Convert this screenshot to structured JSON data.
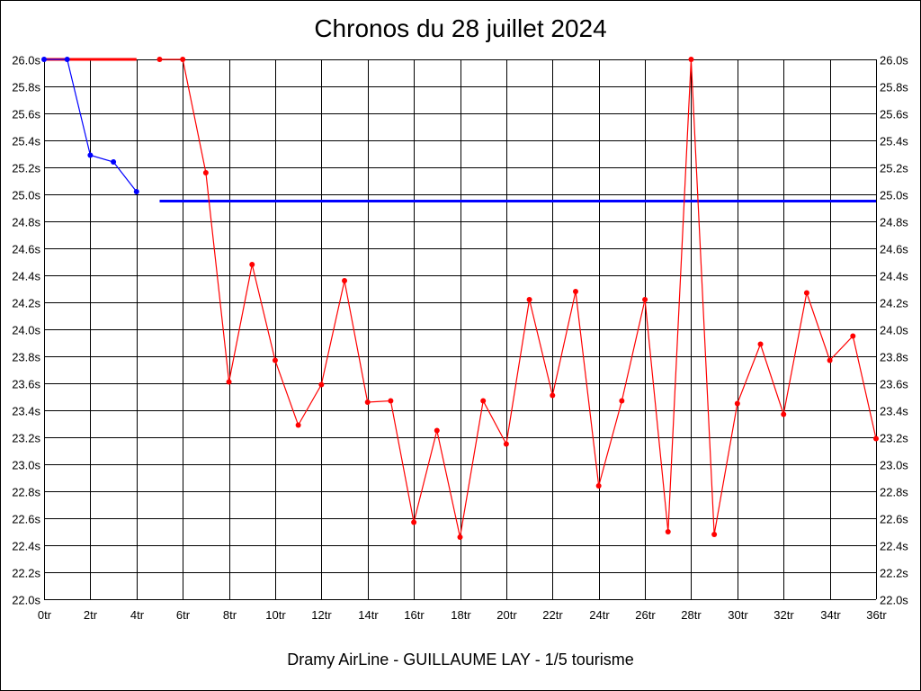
{
  "chart_data": {
    "type": "line",
    "title": "Chronos du 28 juillet 2024",
    "footer": "Dramy AirLine - GUILLAUME LAY - 1/5 tourisme",
    "xlim": [
      0,
      36
    ],
    "ylim": [
      22.0,
      26.0
    ],
    "x_ticks": [
      "0tr",
      "2tr",
      "4tr",
      "6tr",
      "8tr",
      "10tr",
      "12tr",
      "14tr",
      "16tr",
      "18tr",
      "20tr",
      "22tr",
      "24tr",
      "26tr",
      "28tr",
      "30tr",
      "32tr",
      "34tr",
      "36tr"
    ],
    "y_ticks": [
      "22.0s",
      "22.2s",
      "22.4s",
      "22.6s",
      "22.8s",
      "23.0s",
      "23.2s",
      "23.4s",
      "23.6s",
      "23.8s",
      "24.0s",
      "24.2s",
      "24.4s",
      "24.6s",
      "24.8s",
      "25.0s",
      "25.2s",
      "25.4s",
      "25.6s",
      "25.8s",
      "26.0s"
    ],
    "grid": true,
    "series": [
      {
        "color": "#0000ff",
        "points": [
          [
            0,
            26.0
          ],
          [
            1,
            26.0
          ],
          [
            2,
            25.29
          ],
          [
            3,
            25.24
          ],
          [
            4,
            25.02
          ]
        ]
      },
      {
        "color": "#ff0000",
        "points": [
          [
            5,
            26.0
          ],
          [
            6,
            26.0
          ],
          [
            7,
            25.16
          ],
          [
            8,
            23.61
          ],
          [
            9,
            24.48
          ],
          [
            10,
            23.77
          ],
          [
            11,
            23.29
          ],
          [
            12,
            23.59
          ],
          [
            13,
            24.36
          ],
          [
            14,
            23.46
          ],
          [
            15,
            23.47
          ],
          [
            16,
            22.57
          ],
          [
            17,
            23.25
          ],
          [
            18,
            22.46
          ],
          [
            19,
            23.47
          ],
          [
            20,
            23.15
          ],
          [
            21,
            24.22
          ],
          [
            22,
            23.51
          ],
          [
            23,
            24.28
          ],
          [
            24,
            22.84
          ],
          [
            25,
            23.47
          ],
          [
            26,
            24.22
          ],
          [
            27,
            22.5
          ],
          [
            28,
            26.0
          ],
          [
            29,
            22.48
          ],
          [
            30,
            23.45
          ],
          [
            31,
            23.89
          ],
          [
            32,
            23.37
          ],
          [
            33,
            24.27
          ],
          [
            34,
            23.77
          ],
          [
            35,
            23.95
          ],
          [
            36,
            23.19
          ]
        ]
      }
    ],
    "reference_lines": [
      {
        "color": "#ff0000",
        "x_from": 0,
        "x_to": 4,
        "y": 26.0
      },
      {
        "color": "#0000ff",
        "x_from": 5,
        "x_to": 36,
        "y": 24.95
      }
    ]
  }
}
